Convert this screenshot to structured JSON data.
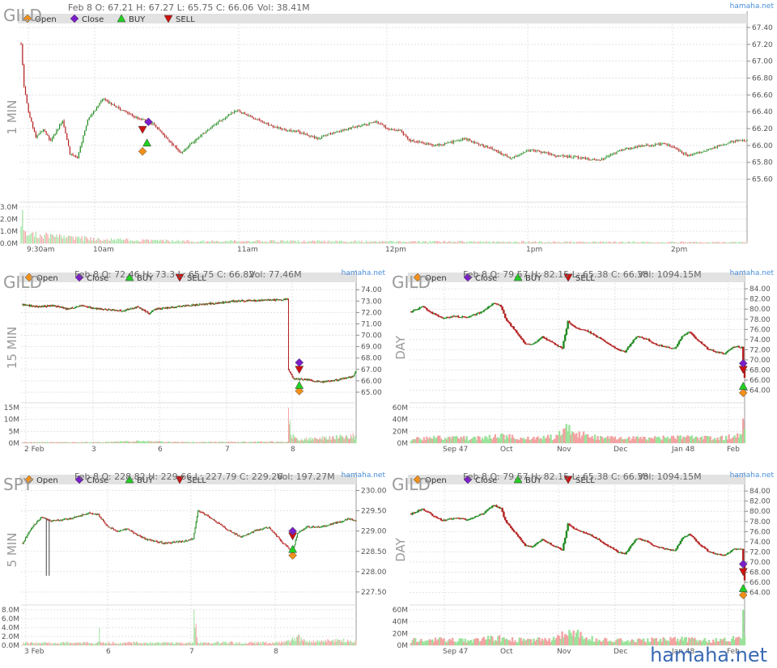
{
  "colors": {
    "up": "#1f8a1f",
    "down": "#b41f1f",
    "vol_up": "#9be29b",
    "vol_down": "#f3a3a3",
    "open": "#f0901a",
    "close": "#7a1fc8",
    "buy": "#22d022",
    "sell": "#d01010",
    "legend_bg": "#e2e2e2"
  },
  "legend": {
    "open": "Open",
    "close": "Close",
    "buy": "BUY",
    "sell": "SELL"
  },
  "watermark": "hamaha.net",
  "chart_data": [
    {
      "id": "gild-1min",
      "type": "candlestick",
      "symbol": "GILD",
      "timeframe": "1 MIN",
      "info": "Feb 8 O: 67.21 H: 67.27 L: 65.75 C: 66.06",
      "vol_info": "Vol: 38.41M",
      "source": "hamaha.net",
      "ylim": [
        65.5,
        67.4
      ],
      "y_ticks": [
        "67.40",
        "67.20",
        "67.00",
        "66.80",
        "66.60",
        "66.40",
        "66.20",
        "66.00",
        "65.80",
        "65.60"
      ],
      "vol_ticks": [
        "3.0M",
        "2.0M",
        "1.0M",
        "0.0M"
      ],
      "x_labels": [
        "9:30am",
        "10am",
        "11am",
        "12pm",
        "1pm",
        "2pm"
      ],
      "path": [
        [
          0,
          67.21
        ],
        [
          2,
          66.7
        ],
        [
          5,
          66.4
        ],
        [
          10,
          66.1
        ],
        [
          15,
          66.2
        ],
        [
          20,
          66.05
        ],
        [
          28,
          66.3
        ],
        [
          33,
          65.9
        ],
        [
          38,
          65.85
        ],
        [
          45,
          66.3
        ],
        [
          55,
          66.55
        ],
        [
          65,
          66.45
        ],
        [
          75,
          66.35
        ],
        [
          90,
          66.25
        ],
        [
          100,
          66.05
        ],
        [
          108,
          65.92
        ],
        [
          120,
          66.1
        ],
        [
          135,
          66.3
        ],
        [
          145,
          66.42
        ],
        [
          160,
          66.3
        ],
        [
          175,
          66.2
        ],
        [
          190,
          66.15
        ],
        [
          200,
          66.08
        ],
        [
          210,
          66.15
        ],
        [
          225,
          66.22
        ],
        [
          240,
          66.28
        ],
        [
          248,
          66.2
        ],
        [
          256,
          66.18
        ],
        [
          262,
          66.06
        ],
        [
          280,
          66.0
        ],
        [
          300,
          66.08
        ],
        [
          315,
          65.98
        ],
        [
          330,
          65.85
        ],
        [
          345,
          65.95
        ],
        [
          360,
          65.88
        ],
        [
          375,
          65.86
        ],
        [
          390,
          65.82
        ],
        [
          405,
          65.95
        ],
        [
          420,
          66.0
        ],
        [
          435,
          66.02
        ],
        [
          450,
          65.88
        ],
        [
          465,
          65.96
        ],
        [
          480,
          66.05
        ],
        [
          490,
          66.06
        ]
      ],
      "vol_path": [
        [
          0,
          2.8
        ],
        [
          2,
          0.9
        ],
        [
          10,
          0.7
        ],
        [
          30,
          0.5
        ],
        [
          60,
          0.3
        ],
        [
          120,
          0.2
        ],
        [
          250,
          0.15
        ],
        [
          490,
          0.1
        ]
      ],
      "signals": [
        {
          "type": "open",
          "t": 82,
          "y": 65.93
        },
        {
          "type": "buy",
          "t": 85,
          "y": 66.03
        },
        {
          "type": "sell",
          "t": 82,
          "y": 66.19
        },
        {
          "type": "close",
          "t": 86,
          "y": 66.28
        }
      ]
    },
    {
      "id": "gild-15min",
      "type": "candlestick",
      "symbol": "GILD",
      "timeframe": "15 MIN",
      "info": "Feb 8 O: 72.46 H: 73.3 L: 65.75 C: 66.82",
      "vol_info": "Vol: 77.46M",
      "source": "hamaha.net",
      "ylim": [
        64.5,
        74.3
      ],
      "y_ticks": [
        "74.00",
        "73.00",
        "72.00",
        "71.00",
        "70.00",
        "69.00",
        "68.00",
        "67.00",
        "66.00",
        "65.00"
      ],
      "vol_ticks": [
        "15M",
        "10M",
        "5M",
        "0M"
      ],
      "x_labels": [
        "2 Feb",
        "3",
        "6",
        "7",
        "8"
      ],
      "path": [
        [
          0,
          72.7
        ],
        [
          20,
          72.5
        ],
        [
          40,
          72.6
        ],
        [
          60,
          72.3
        ],
        [
          75,
          72.6
        ],
        [
          100,
          72.3
        ],
        [
          130,
          72.15
        ],
        [
          150,
          72.5
        ],
        [
          165,
          71.9
        ],
        [
          172,
          72.3
        ],
        [
          200,
          72.5
        ],
        [
          230,
          72.7
        ],
        [
          250,
          72.8
        ],
        [
          275,
          73.0
        ],
        [
          300,
          73.05
        ],
        [
          330,
          73.1
        ],
        [
          345,
          73.15
        ],
        [
          346,
          67.0
        ],
        [
          352,
          66.2
        ],
        [
          370,
          66.1
        ],
        [
          390,
          65.9
        ],
        [
          410,
          66.1
        ],
        [
          430,
          66.4
        ],
        [
          434,
          66.9
        ]
      ],
      "vol_path": [
        [
          0,
          0.4
        ],
        [
          40,
          0.4
        ],
        [
          90,
          0.4
        ],
        [
          150,
          0.8
        ],
        [
          200,
          0.5
        ],
        [
          250,
          0.5
        ],
        [
          345,
          0.6
        ],
        [
          346,
          11
        ],
        [
          350,
          3
        ],
        [
          360,
          1.5
        ],
        [
          434,
          3
        ]
      ],
      "signals": [
        {
          "type": "open",
          "t": 360,
          "y": 65.1
        },
        {
          "type": "buy",
          "t": 360,
          "y": 65.6
        },
        {
          "type": "sell",
          "t": 360,
          "y": 67.0
        },
        {
          "type": "close",
          "t": 360,
          "y": 67.6
        }
      ]
    },
    {
      "id": "gild-day-1",
      "type": "candlestick",
      "symbol": "GILD",
      "timeframe": "DAY",
      "info": "Feb 8 O: 79.57 H: 82.15 L: 65.38 C: 66.38",
      "vol_info": "Vol: 1094.15M",
      "source": "hamaha.net",
      "ylim": [
        62.5,
        84.5
      ],
      "y_ticks": [
        "84.00",
        "82.00",
        "80.00",
        "78.00",
        "76.00",
        "74.00",
        "72.00",
        "70.00",
        "68.00",
        "66.00",
        "64.00"
      ],
      "vol_ticks": [
        "60M",
        "40M",
        "20M",
        "0M"
      ],
      "x_labels": [
        "Sep 47",
        "Oct",
        "Nov",
        "Dec",
        "Jan 48",
        "Feb"
      ],
      "path": [
        [
          0,
          79.5
        ],
        [
          8,
          80.5
        ],
        [
          15,
          79.2
        ],
        [
          22,
          78.2
        ],
        [
          30,
          78.6
        ],
        [
          40,
          78.4
        ],
        [
          50,
          79.5
        ],
        [
          58,
          81.2
        ],
        [
          63,
          80.6
        ],
        [
          66,
          78.2
        ],
        [
          75,
          75.0
        ],
        [
          80,
          73.2
        ],
        [
          85,
          73.0
        ],
        [
          92,
          74.5
        ],
        [
          100,
          73.2
        ],
        [
          106,
          72.3
        ],
        [
          110,
          77.5
        ],
        [
          116,
          76.3
        ],
        [
          125,
          75.5
        ],
        [
          135,
          73.8
        ],
        [
          145,
          72.0
        ],
        [
          150,
          71.6
        ],
        [
          158,
          74.6
        ],
        [
          165,
          74.2
        ],
        [
          170,
          73.2
        ],
        [
          178,
          72.6
        ],
        [
          185,
          72.2
        ],
        [
          190,
          74.6
        ],
        [
          195,
          75.6
        ],
        [
          202,
          73.6
        ],
        [
          208,
          72.2
        ],
        [
          214,
          71.6
        ],
        [
          220,
          71.2
        ],
        [
          226,
          72.6
        ],
        [
          232,
          72.5
        ],
        [
          234,
          66.4
        ]
      ],
      "vol_path": [
        [
          0,
          8
        ],
        [
          20,
          9
        ],
        [
          40,
          8
        ],
        [
          60,
          12
        ],
        [
          80,
          8
        ],
        [
          100,
          10
        ],
        [
          110,
          23
        ],
        [
          130,
          9
        ],
        [
          150,
          8
        ],
        [
          170,
          9
        ],
        [
          190,
          10
        ],
        [
          210,
          8
        ],
        [
          232,
          12
        ],
        [
          233,
          45
        ],
        [
          234,
          18
        ]
      ],
      "signals": [
        {
          "type": "open",
          "t": 233,
          "y": 63.5
        },
        {
          "type": "buy",
          "t": 233,
          "y": 64.8
        },
        {
          "type": "sell",
          "t": 233,
          "y": 68.1
        },
        {
          "type": "close",
          "t": 233,
          "y": 69.3
        }
      ]
    },
    {
      "id": "spy-5min",
      "type": "candlestick",
      "symbol": "SPY",
      "timeframe": "5 MIN",
      "info": "Feb 8 O: 228.82 H: 229.66 L: 227.79 C: 229.26",
      "vol_info": "Vol: 197.27M",
      "source": "hamaha.net",
      "ylim": [
        227.3,
        230.05
      ],
      "y_ticks": [
        "230.00",
        "229.50",
        "229.00",
        "228.50",
        "228.00",
        "227.50"
      ],
      "vol_ticks": [
        "8.0M",
        "6.0M",
        "4.0M",
        "2.0M",
        "0.0M"
      ],
      "x_labels": [
        "3 Feb",
        "6",
        "7",
        "8"
      ],
      "path": [
        [
          0,
          228.7
        ],
        [
          10,
          229.1
        ],
        [
          20,
          229.35
        ],
        [
          30,
          229.25
        ],
        [
          50,
          229.3
        ],
        [
          70,
          229.45
        ],
        [
          80,
          229.4
        ],
        [
          90,
          229.1
        ],
        [
          100,
          229.0
        ],
        [
          110,
          229.05
        ],
        [
          130,
          228.8
        ],
        [
          150,
          228.7
        ],
        [
          170,
          228.75
        ],
        [
          180,
          228.8
        ],
        [
          185,
          229.5
        ],
        [
          190,
          229.45
        ],
        [
          200,
          229.3
        ],
        [
          215,
          229.05
        ],
        [
          230,
          228.85
        ],
        [
          245,
          229.0
        ],
        [
          260,
          229.1
        ],
        [
          275,
          228.7
        ],
        [
          285,
          228.5
        ],
        [
          290,
          228.95
        ],
        [
          300,
          229.1
        ],
        [
          315,
          229.1
        ],
        [
          330,
          229.2
        ],
        [
          345,
          229.3
        ],
        [
          352,
          229.25
        ]
      ],
      "vol_path": [
        [
          0,
          0.5
        ],
        [
          80,
          0.6
        ],
        [
          81,
          8
        ],
        [
          82,
          0.6
        ],
        [
          180,
          0.5
        ],
        [
          181,
          7.5
        ],
        [
          185,
          0.6
        ],
        [
          275,
          0.6
        ],
        [
          290,
          2.0
        ],
        [
          300,
          0.8
        ],
        [
          352,
          1.2
        ]
      ],
      "spikes": [
        {
          "t": 25,
          "lo": 227.9,
          "hi": 229.3
        },
        {
          "t": 28,
          "lo": 227.9,
          "hi": 229.3
        }
      ],
      "signals": [
        {
          "type": "open",
          "t": 285,
          "y": 228.4
        },
        {
          "type": "buy",
          "t": 285,
          "y": 228.55
        },
        {
          "type": "sell",
          "t": 285,
          "y": 228.88
        },
        {
          "type": "close",
          "t": 285,
          "y": 229.0
        }
      ]
    },
    {
      "id": "gild-day-2",
      "type": "candlestick",
      "symbol": "GILD",
      "timeframe": "DAY",
      "info": "Feb 8 O: 79.57 H: 82.15 L: 65.38 C: 66.38",
      "vol_info": "Vol: 1094.15M",
      "source": "hamaha.net",
      "ylim": [
        62.5,
        84.5
      ],
      "y_ticks": [
        "84.00",
        "82.00",
        "80.00",
        "78.00",
        "76.00",
        "74.00",
        "72.00",
        "70.00",
        "68.00",
        "66.00",
        "64.00"
      ],
      "vol_ticks": [
        "60M",
        "40M",
        "20M",
        "0M"
      ],
      "x_labels": [
        "Sep 47",
        "Oct",
        "Nov",
        "Dec",
        "Jan 48",
        "Feb"
      ],
      "path": [
        [
          0,
          79.5
        ],
        [
          8,
          80.5
        ],
        [
          15,
          79.2
        ],
        [
          22,
          78.2
        ],
        [
          30,
          78.6
        ],
        [
          40,
          78.4
        ],
        [
          50,
          79.5
        ],
        [
          58,
          81.2
        ],
        [
          63,
          80.6
        ],
        [
          66,
          78.2
        ],
        [
          75,
          75.0
        ],
        [
          80,
          73.2
        ],
        [
          85,
          73.0
        ],
        [
          92,
          74.5
        ],
        [
          100,
          73.2
        ],
        [
          106,
          72.3
        ],
        [
          110,
          77.5
        ],
        [
          116,
          76.3
        ],
        [
          125,
          75.5
        ],
        [
          135,
          73.8
        ],
        [
          145,
          72.0
        ],
        [
          150,
          71.6
        ],
        [
          158,
          74.6
        ],
        [
          165,
          74.2
        ],
        [
          170,
          73.2
        ],
        [
          178,
          72.6
        ],
        [
          185,
          72.2
        ],
        [
          190,
          74.6
        ],
        [
          195,
          75.6
        ],
        [
          202,
          73.6
        ],
        [
          208,
          72.2
        ],
        [
          214,
          71.6
        ],
        [
          220,
          71.2
        ],
        [
          226,
          72.6
        ],
        [
          232,
          72.5
        ],
        [
          234,
          66.4
        ]
      ],
      "vol_path": [
        [
          0,
          8
        ],
        [
          20,
          9
        ],
        [
          40,
          8
        ],
        [
          60,
          12
        ],
        [
          80,
          8
        ],
        [
          100,
          10
        ],
        [
          110,
          23
        ],
        [
          130,
          9
        ],
        [
          150,
          8
        ],
        [
          170,
          9
        ],
        [
          190,
          10
        ],
        [
          210,
          8
        ],
        [
          232,
          12
        ],
        [
          233,
          45
        ],
        [
          234,
          18
        ]
      ],
      "signals": [
        {
          "type": "open",
          "t": 233,
          "y": 63.5
        },
        {
          "type": "buy",
          "t": 233,
          "y": 64.8
        },
        {
          "type": "sell",
          "t": 233,
          "y": 68.1
        },
        {
          "type": "close",
          "t": 233,
          "y": 69.6
        }
      ]
    }
  ]
}
